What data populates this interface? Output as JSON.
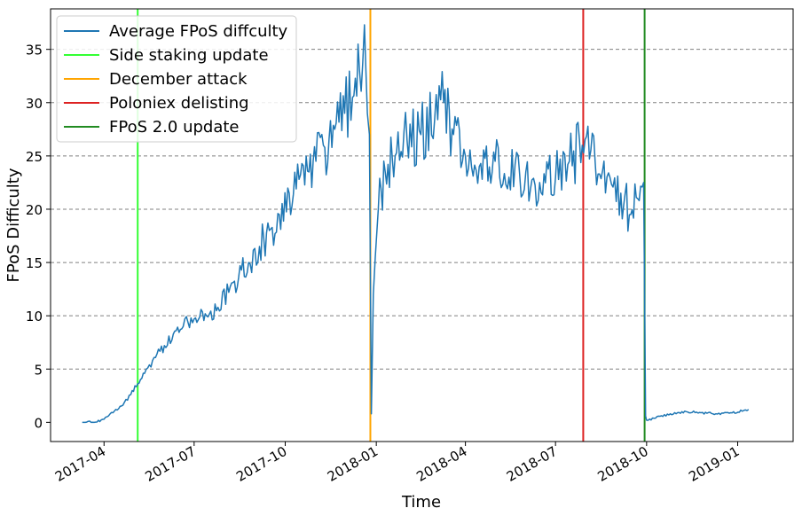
{
  "chart_data": {
    "type": "line",
    "title": "",
    "xlabel": "Time",
    "ylabel": "FPoS Difficulty",
    "xlim": [
      "2017-02-06",
      "2019-02-26"
    ],
    "ylim": [
      -1.8,
      38.8
    ],
    "x_ticks": [
      "2017-04",
      "2017-07",
      "2017-10",
      "2018-01",
      "2018-04",
      "2018-07",
      "2018-10",
      "2019-01"
    ],
    "y_ticks": [
      "0",
      "5",
      "10",
      "15",
      "20",
      "25",
      "30",
      "35"
    ],
    "grid": "horizontal dashed",
    "legend_position": "top-left",
    "series": [
      {
        "name": "Average FPoS diffculty",
        "color": "#1f77b4",
        "points": [
          [
            "2017-03-10",
            0.0
          ],
          [
            "2017-03-22",
            0.0
          ],
          [
            "2017-04-01",
            0.3
          ],
          [
            "2017-04-10",
            0.9
          ],
          [
            "2017-04-20",
            1.6
          ],
          [
            "2017-04-28",
            2.6
          ],
          [
            "2017-05-05",
            3.6
          ],
          [
            "2017-05-12",
            4.6
          ],
          [
            "2017-05-20",
            5.8
          ],
          [
            "2017-06-01",
            7.2
          ],
          [
            "2017-06-10",
            8.3
          ],
          [
            "2017-06-20",
            9.0
          ],
          [
            "2017-07-01",
            9.7
          ],
          [
            "2017-07-08",
            10.6
          ],
          [
            "2017-07-15",
            9.9
          ],
          [
            "2017-07-25",
            10.8
          ],
          [
            "2017-08-05",
            12.2
          ],
          [
            "2017-08-15",
            13.6
          ],
          [
            "2017-08-25",
            15.0
          ],
          [
            "2017-09-05",
            16.5
          ],
          [
            "2017-09-15",
            18.0
          ],
          [
            "2017-09-25",
            19.5
          ],
          [
            "2017-10-05",
            21.5
          ],
          [
            "2017-10-15",
            22.8
          ],
          [
            "2017-10-25",
            23.5
          ],
          [
            "2017-11-01",
            24.5
          ],
          [
            "2017-11-10",
            25.8
          ],
          [
            "2017-11-20",
            27.5
          ],
          [
            "2017-11-30",
            29.0
          ],
          [
            "2017-12-08",
            30.5
          ],
          [
            "2017-12-15",
            33.0
          ],
          [
            "2017-12-20",
            37.3
          ],
          [
            "2017-12-23",
            29.0
          ],
          [
            "2017-12-25",
            27.0
          ],
          [
            "2017-12-27",
            0.8
          ],
          [
            "2017-12-29",
            12.0
          ],
          [
            "2017-12-31",
            15.5
          ],
          [
            "2018-01-03",
            20.0
          ],
          [
            "2018-01-10",
            23.5
          ],
          [
            "2018-01-20",
            25.0
          ],
          [
            "2018-02-01",
            26.5
          ],
          [
            "2018-02-15",
            27.0
          ],
          [
            "2018-03-01",
            28.5
          ],
          [
            "2018-03-10",
            30.0
          ],
          [
            "2018-03-20",
            27.0
          ],
          [
            "2018-04-01",
            25.0
          ],
          [
            "2018-04-15",
            24.0
          ],
          [
            "2018-05-01",
            24.5
          ],
          [
            "2018-05-15",
            23.0
          ],
          [
            "2018-06-01",
            23.5
          ],
          [
            "2018-06-15",
            22.5
          ],
          [
            "2018-07-01",
            23.0
          ],
          [
            "2018-07-15",
            24.5
          ],
          [
            "2018-07-28",
            26.0
          ],
          [
            "2018-08-10",
            24.5
          ],
          [
            "2018-08-25",
            23.0
          ],
          [
            "2018-09-05",
            21.5
          ],
          [
            "2018-09-15",
            19.5
          ],
          [
            "2018-09-22",
            21.0
          ],
          [
            "2018-09-28",
            22.5
          ],
          [
            "2018-09-30",
            0.6
          ],
          [
            "2018-10-01",
            0.2
          ],
          [
            "2018-10-10",
            0.4
          ],
          [
            "2018-10-25",
            0.8
          ],
          [
            "2018-11-10",
            1.0
          ],
          [
            "2018-11-25",
            0.9
          ],
          [
            "2018-12-10",
            0.8
          ],
          [
            "2018-12-25",
            0.9
          ],
          [
            "2019-01-07",
            1.1
          ],
          [
            "2019-01-12",
            1.2
          ]
        ]
      }
    ],
    "events": [
      {
        "name": "Side staking update",
        "date": "2017-05-05",
        "color": "#33ff33"
      },
      {
        "name": "December attack",
        "date": "2017-12-26",
        "color": "#ffa500"
      },
      {
        "name": "Poloniex delisting",
        "date": "2018-07-29",
        "color": "#dd2222"
      },
      {
        "name": "FPoS 2.0 update",
        "date": "2018-09-29",
        "color": "#228b22"
      }
    ]
  }
}
